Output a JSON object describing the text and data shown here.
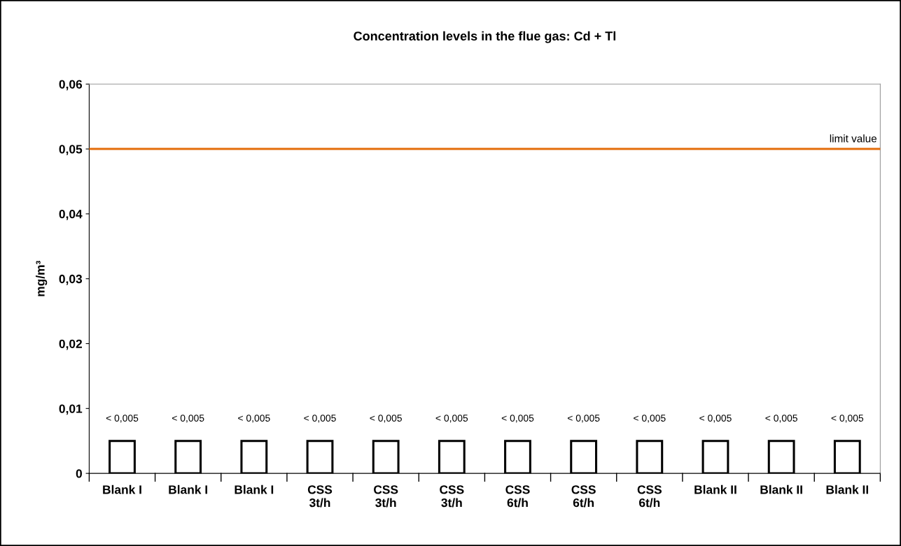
{
  "chart_data": {
    "type": "bar",
    "title": "Concentration levels in the flue gas: Cd + Tl",
    "ylabel": "mg/m³",
    "categories": [
      "Blank I",
      "Blank I",
      "Blank I",
      "CSS\n3t/h",
      "CSS\n3t/h",
      "CSS\n3t/h",
      "CSS\n6t/h",
      "CSS\n6t/h",
      "CSS\n6t/h",
      "Blank II",
      "Blank II",
      "Blank II"
    ],
    "series": [
      {
        "color": "#ffffff",
        "values": [
          0.005,
          0.005,
          0.005,
          0.005,
          0.005,
          0.005,
          0.005,
          0.005,
          0.005,
          0.005,
          0.005,
          0.005
        ],
        "value_labels": [
          "< 0,005",
          "< 0,005",
          "< 0,005",
          "< 0,005",
          "< 0,005",
          "< 0,005",
          "< 0,005",
          "< 0,005",
          "< 0,005",
          "< 0,005",
          "< 0,005",
          "< 0,005"
        ]
      }
    ],
    "ylim": [
      0,
      0.06
    ],
    "yticks": [
      {
        "value": 0,
        "label": "0"
      },
      {
        "value": 0.01,
        "label": "0,01"
      },
      {
        "value": 0.02,
        "label": "0,02"
      },
      {
        "value": 0.03,
        "label": "0,03"
      },
      {
        "value": 0.04,
        "label": "0,04"
      },
      {
        "value": 0.05,
        "label": "0,05"
      },
      {
        "value": 0.06,
        "label": "0,06"
      }
    ],
    "ref_lines": [
      {
        "axis": "y",
        "value": 0.05,
        "label": "limit value",
        "color": "#e46c0a"
      }
    ],
    "grid": false,
    "legend": false
  }
}
